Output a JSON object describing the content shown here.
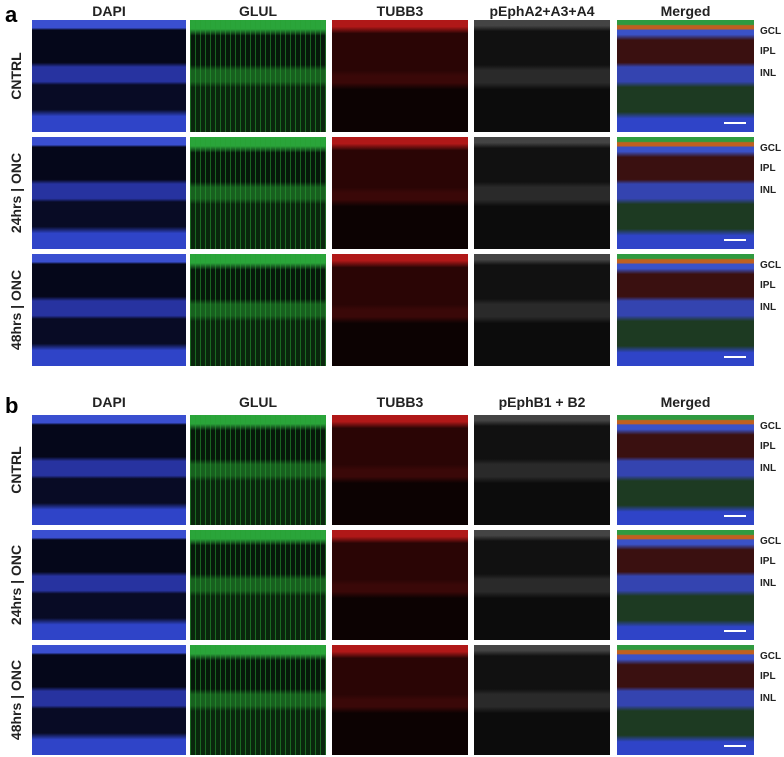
{
  "panels": [
    {
      "label": "a",
      "columns": [
        "DAPI",
        "GLUL",
        "TUBB3",
        "pEphA2+A3+A4",
        "Merged"
      ],
      "rows": [
        "CNTRL",
        "24hrs | ONC",
        "48hrs | ONC"
      ],
      "layers": [
        "GCL",
        "IPL",
        "INL"
      ]
    },
    {
      "label": "b",
      "columns": [
        "DAPI",
        "GLUL",
        "TUBB3",
        "pEphB1 + B2",
        "Merged"
      ],
      "rows": [
        "CNTRL",
        "24hrs | ONC",
        "48hrs | ONC"
      ],
      "layers": [
        "GCL",
        "IPL",
        "INL"
      ]
    }
  ]
}
